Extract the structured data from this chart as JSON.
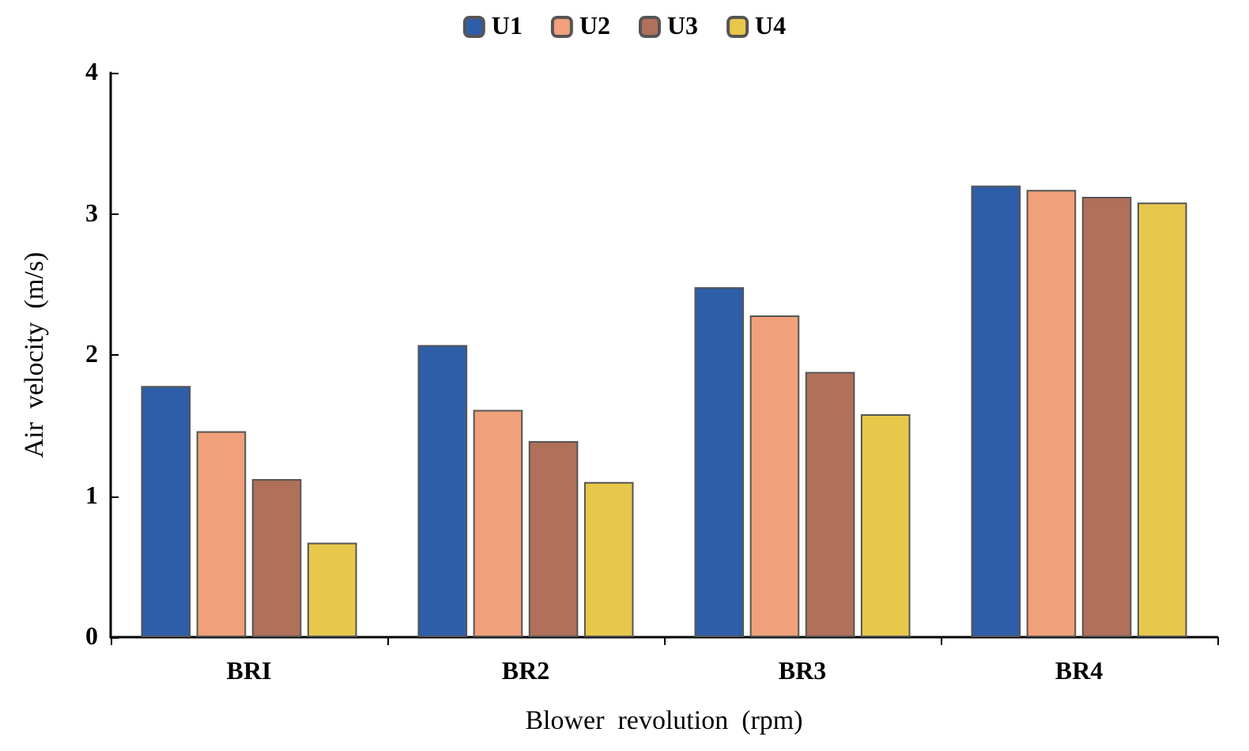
{
  "chart_data": {
    "type": "bar",
    "xlabel": "Blower  revolution  (rpm)",
    "ylabel": "Air  velocity  (m/s)",
    "categories": [
      "BRI",
      "BR2",
      "BR3",
      "BR4"
    ],
    "series": [
      {
        "name": "U1",
        "color": "#2f5ea8",
        "values": [
          1.78,
          2.07,
          2.48,
          3.2
        ]
      },
      {
        "name": "U2",
        "color": "#f0a07a",
        "values": [
          1.46,
          1.61,
          2.28,
          3.17
        ]
      },
      {
        "name": "U3",
        "color": "#b0705a",
        "values": [
          1.12,
          1.39,
          1.88,
          3.12
        ]
      },
      {
        "name": "U4",
        "color": "#e8c84a",
        "values": [
          0.67,
          1.1,
          1.58,
          3.08
        ]
      }
    ],
    "ylim": [
      0,
      4
    ],
    "yticks": [
      0,
      1,
      2,
      3,
      4
    ],
    "grid": false,
    "legend": "top"
  }
}
